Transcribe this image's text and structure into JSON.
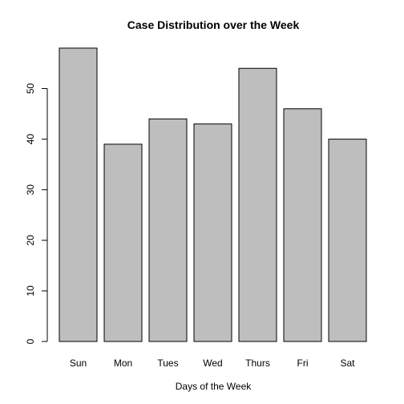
{
  "chart_data": {
    "type": "bar",
    "title": "Case Distribution over the Week",
    "xlabel": "Days of the Week",
    "ylabel": "",
    "categories": [
      "Sun",
      "Mon",
      "Tues",
      "Wed",
      "Thurs",
      "Fri",
      "Sat"
    ],
    "values": [
      58,
      39,
      44,
      43,
      54,
      46,
      40
    ],
    "ylim": [
      0,
      58
    ],
    "yticks": [
      "0",
      "10",
      "20",
      "30",
      "40",
      "50"
    ],
    "grid": false,
    "legend": "none",
    "colors": {
      "bar_fill": "#bebebe",
      "bar_stroke": "#000000",
      "axis": "#000000",
      "background": "#ffffff"
    }
  }
}
